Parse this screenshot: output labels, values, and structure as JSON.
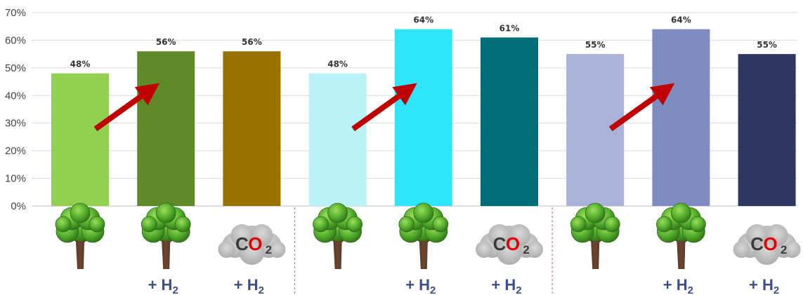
{
  "chart_data": {
    "type": "bar",
    "title": "",
    "xlabel": "",
    "ylabel": "",
    "ylim": [
      0,
      0.7
    ],
    "y_ticks": [
      "0%",
      "10%",
      "20%",
      "30%",
      "40%",
      "50%",
      "60%",
      "70%"
    ],
    "grid": true,
    "groups": [
      {
        "bars": [
          {
            "value": 0.48,
            "label": "48%",
            "color": "#92d050",
            "icon": "tree-icon",
            "caption": ""
          },
          {
            "value": 0.56,
            "label": "56%",
            "color": "#5f8a28",
            "icon": "tree-icon",
            "caption": "+ H2"
          },
          {
            "value": 0.56,
            "label": "56%",
            "color": "#9a7200",
            "icon": "co2-cloud-icon",
            "caption": "+ H2"
          }
        ]
      },
      {
        "bars": [
          {
            "value": 0.48,
            "label": "48%",
            "color": "#b9f2f7",
            "icon": "tree-icon",
            "caption": ""
          },
          {
            "value": 0.64,
            "label": "64%",
            "color": "#2fe5fb",
            "icon": "tree-icon",
            "caption": "+ H2"
          },
          {
            "value": 0.61,
            "label": "61%",
            "color": "#006e78",
            "icon": "co2-cloud-icon",
            "caption": "+ H2"
          }
        ]
      },
      {
        "bars": [
          {
            "value": 0.55,
            "label": "55%",
            "color": "#a9b2d8",
            "icon": "tree-icon",
            "caption": ""
          },
          {
            "value": 0.64,
            "label": "64%",
            "color": "#7f8cc1",
            "icon": "tree-icon",
            "caption": "+ H2"
          },
          {
            "value": 0.55,
            "label": "55%",
            "color": "#2e3761",
            "icon": "co2-cloud-icon",
            "caption": "+ H2"
          }
        ]
      }
    ],
    "co2_text": {
      "c": "C",
      "o": "O",
      "sub": "2"
    },
    "annotations": {
      "arrows": 3,
      "arrow_color": "#c00000",
      "separator_color": "#e06060"
    }
  }
}
